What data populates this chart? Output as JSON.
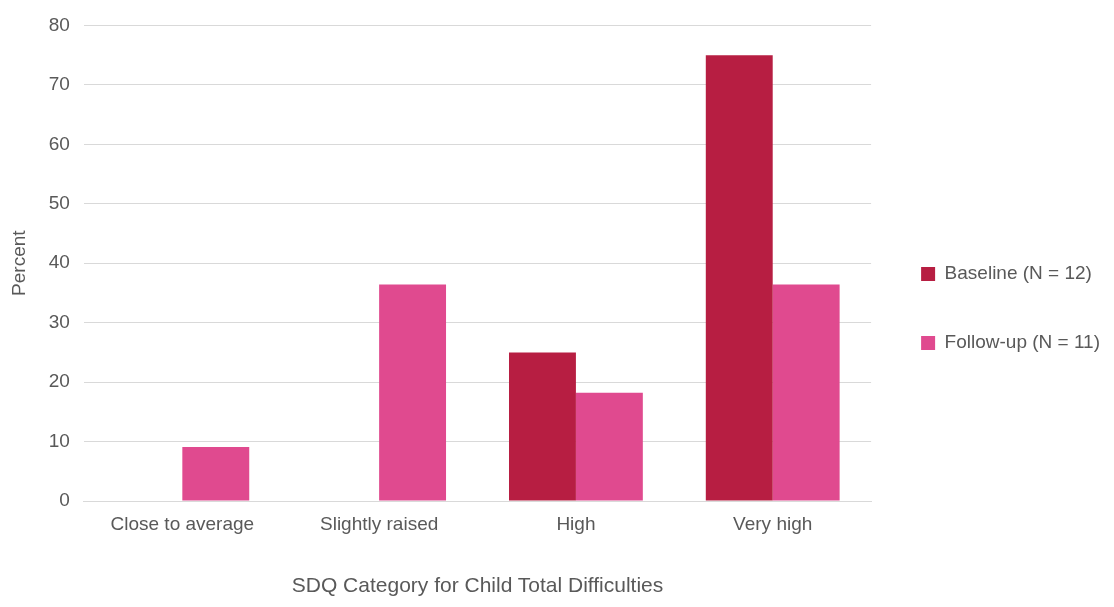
{
  "chart_data": {
    "type": "bar",
    "xlabel": "SDQ Category for Child Total Difficulties",
    "ylabel": "Percent",
    "categories": [
      "Close to average",
      "Slightly raised",
      "High",
      "Very high"
    ],
    "series": [
      {
        "name": "Baseline (N = 12)",
        "color": "#b71e42",
        "values": [
          0,
          0,
          25,
          75
        ]
      },
      {
        "name": "Follow-up (N = 11)",
        "color": "#e04a8f",
        "values": [
          9.1,
          36.4,
          18.2,
          36.4
        ]
      }
    ],
    "ylim": [
      0,
      80
    ],
    "yticks": [
      0,
      10,
      20,
      30,
      40,
      50,
      60,
      70,
      80
    ],
    "grid": "y",
    "legend": "right"
  }
}
